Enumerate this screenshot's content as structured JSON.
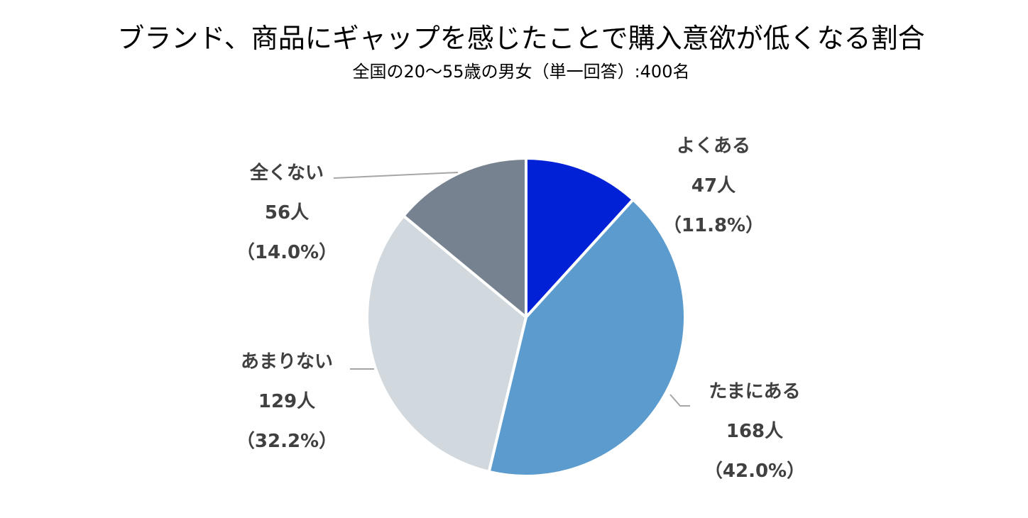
{
  "chart_data": {
    "type": "pie",
    "title": "ブランド、商品にギャップを感じたことで購入意欲が低くなる割合",
    "subtitle": "全国の20～55歳の男女（単一回答）:400名",
    "start_angle_deg": 0,
    "direction": "clockwise",
    "legend": "none",
    "slices": [
      {
        "label": "よくある",
        "count_text": "47人",
        "percent_text": "（11.8%）",
        "value": 47,
        "percent": 11.8,
        "color": "#0021d6"
      },
      {
        "label": "たまにある",
        "count_text": "168人",
        "percent_text": "（42.0%）",
        "value": 168,
        "percent": 42.0,
        "color": "#5b9bcd"
      },
      {
        "label": "あまりない",
        "count_text": "129人",
        "percent_text": "（32.2%）",
        "value": 129,
        "percent": 32.2,
        "color": "#d1d9df"
      },
      {
        "label": "全くない",
        "count_text": "56人",
        "percent_text": "（14.0%）",
        "value": 56,
        "percent": 14.0,
        "color": "#76828f"
      }
    ]
  }
}
